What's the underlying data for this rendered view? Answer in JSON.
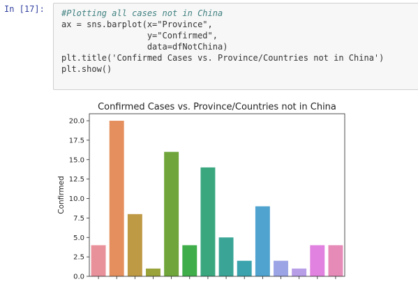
{
  "cell": {
    "prompt": "In [17]:",
    "code_lines": [
      "#Plotting all cases not in China",
      "ax = sns.barplot(x=\"Province\",",
      "                 y=\"Confirmed\",",
      "                 data=dfNotChina)",
      "plt.title('Confirmed Cases vs. Province/Countries not in China')",
      "plt.show()"
    ]
  },
  "chart_data": {
    "type": "bar",
    "title": "Confirmed Cases vs. Province/Countries not in China",
    "xlabel": "",
    "ylabel": "Confirmed",
    "ylim": [
      0,
      20.9
    ],
    "yticks": [
      "0.0",
      "2.5",
      "5.0",
      "7.5",
      "10.0",
      "12.5",
      "15.0",
      "17.5",
      "20.0"
    ],
    "values": [
      4,
      20,
      8,
      1,
      16,
      4,
      14,
      5,
      2,
      9,
      2,
      1,
      4,
      4
    ],
    "colors": [
      "#e8919a",
      "#e58f5e",
      "#bf9a45",
      "#9aa23a",
      "#6fa53a",
      "#3fae4a",
      "#3aa77f",
      "#3aa596",
      "#3aa3ad",
      "#50a3cf",
      "#9ba4e5",
      "#b89de7",
      "#e182e0",
      "#e68ab8"
    ]
  }
}
